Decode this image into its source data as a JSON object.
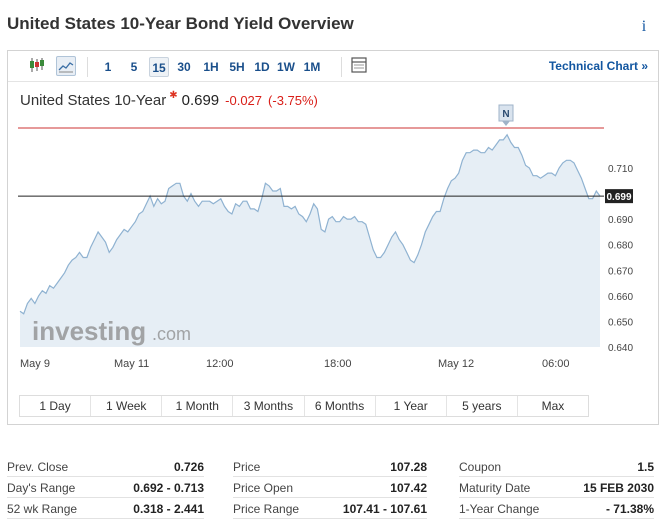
{
  "header": {
    "title": "United States 10-Year Bond Yield Overview"
  },
  "toolbar": {
    "chart_icons": [
      "candlestick-icon",
      "area-chart-icon"
    ],
    "timeframes": [
      "1",
      "5",
      "15",
      "30",
      "1H",
      "5H",
      "1D",
      "1W",
      "1M"
    ],
    "active_timeframe": "15",
    "technical_chart_label": "Technical Chart »"
  },
  "quote": {
    "name": "United States 10-Year",
    "price": "0.699",
    "change": "-0.027",
    "change_pct": "(-3.75%)",
    "up_color": "#d91e18"
  },
  "chart_data": {
    "type": "area",
    "y_ticks": [
      "0.710",
      "0.690",
      "0.680",
      "0.670",
      "0.660",
      "0.650",
      "0.640"
    ],
    "ylim": [
      0.64,
      0.723
    ],
    "current_value": 0.699,
    "current_label": "0.699",
    "prev_close": 0.726,
    "x_ticks": [
      "May 9",
      "May 11",
      "12:00",
      "18:00",
      "May 12",
      "06:00"
    ],
    "marker_label": "N",
    "watermark": "investing.com",
    "values": [
      0.654,
      0.653,
      0.657,
      0.659,
      0.657,
      0.66,
      0.662,
      0.661,
      0.664,
      0.663,
      0.665,
      0.667,
      0.669,
      0.672,
      0.674,
      0.675,
      0.677,
      0.675,
      0.675,
      0.679,
      0.682,
      0.685,
      0.683,
      0.681,
      0.677,
      0.679,
      0.682,
      0.684,
      0.686,
      0.685,
      0.687,
      0.689,
      0.692,
      0.693,
      0.696,
      0.699,
      0.695,
      0.698,
      0.696,
      0.697,
      0.702,
      0.703,
      0.704,
      0.704,
      0.699,
      0.697,
      0.7,
      0.697,
      0.695,
      0.697,
      0.697,
      0.697,
      0.696,
      0.697,
      0.698,
      0.695,
      0.693,
      0.692,
      0.696,
      0.695,
      0.697,
      0.697,
      0.694,
      0.694,
      0.693,
      0.698,
      0.704,
      0.703,
      0.701,
      0.701,
      0.702,
      0.695,
      0.695,
      0.694,
      0.695,
      0.692,
      0.691,
      0.689,
      0.692,
      0.696,
      0.694,
      0.686,
      0.685,
      0.69,
      0.691,
      0.689,
      0.689,
      0.691,
      0.69,
      0.69,
      0.691,
      0.689,
      0.689,
      0.688,
      0.683,
      0.678,
      0.675,
      0.675,
      0.677,
      0.68,
      0.683,
      0.685,
      0.682,
      0.68,
      0.677,
      0.674,
      0.673,
      0.676,
      0.68,
      0.685,
      0.688,
      0.691,
      0.693,
      0.693,
      0.698,
      0.702,
      0.705,
      0.706,
      0.708,
      0.713,
      0.716,
      0.716,
      0.717,
      0.717,
      0.716,
      0.716,
      0.718,
      0.717,
      0.719,
      0.721,
      0.721,
      0.723,
      0.72,
      0.718,
      0.718,
      0.715,
      0.711,
      0.71,
      0.707,
      0.707,
      0.706,
      0.707,
      0.708,
      0.708,
      0.707,
      0.71,
      0.712,
      0.713,
      0.713,
      0.712,
      0.709,
      0.706,
      0.702,
      0.698,
      0.698,
      0.701,
      0.699
    ]
  },
  "ranges": [
    "1 Day",
    "1 Week",
    "1 Month",
    "3 Months",
    "6 Months",
    "1 Year",
    "5 years",
    "Max"
  ],
  "stats": {
    "col1": [
      {
        "label": "Prev. Close",
        "value": "0.726"
      },
      {
        "label": "Day's Range",
        "value": "0.692 - 0.713"
      },
      {
        "label": "52 wk Range",
        "value": "0.318 - 2.441"
      }
    ],
    "col2": [
      {
        "label": "Price",
        "value": "107.28"
      },
      {
        "label": "Price Open",
        "value": "107.42"
      },
      {
        "label": "Price Range",
        "value": "107.41 - 107.61"
      }
    ],
    "col3": [
      {
        "label": "Coupon",
        "value": "1.5"
      },
      {
        "label": "Maturity Date",
        "value": "15 FEB 2030"
      },
      {
        "label": "1-Year Change",
        "value": "- 71.38%"
      }
    ]
  }
}
